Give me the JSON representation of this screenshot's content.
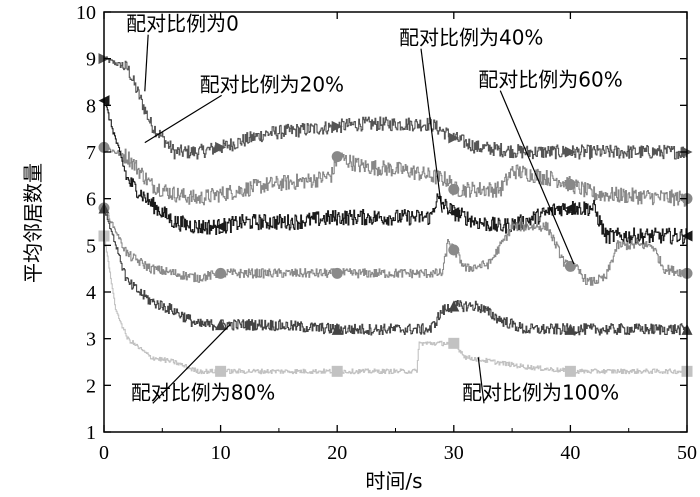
{
  "chart_data": {
    "type": "line",
    "xlabel": "时间/s",
    "ylabel": "平均邻居数量",
    "xlim": [
      0,
      50
    ],
    "ylim": [
      1,
      10
    ],
    "xticks": [
      0,
      10,
      20,
      30,
      40,
      50
    ],
    "yticks": [
      1,
      2,
      3,
      4,
      5,
      6,
      7,
      8,
      9,
      10
    ],
    "grid": false,
    "series": [
      {
        "name": "配对比例为0",
        "color": "#555555",
        "marker": "triangle-right",
        "marker_x": [
          0,
          10,
          20,
          30,
          40,
          50
        ],
        "x": [
          0,
          2,
          4,
          6,
          8,
          10,
          14,
          18,
          22,
          26,
          28,
          30,
          32,
          36,
          40,
          44,
          50
        ],
        "y": [
          9.0,
          8.8,
          7.6,
          7.0,
          7.0,
          7.1,
          7.4,
          7.5,
          7.6,
          7.6,
          7.6,
          7.3,
          7.1,
          7.0,
          7.0,
          7.0,
          7.0
        ],
        "noise": 0.15
      },
      {
        "name": "配对比例为20%",
        "color": "#888888",
        "marker": "circle",
        "marker_x": [
          0,
          20,
          30,
          40,
          50
        ],
        "x": [
          0,
          2,
          4,
          6,
          8,
          10,
          14,
          18,
          19.5,
          20,
          22,
          26,
          29.5,
          30,
          34,
          35,
          39,
          42,
          50
        ],
        "y": [
          7.1,
          6.9,
          6.3,
          6.1,
          6.0,
          6.1,
          6.3,
          6.4,
          6.5,
          6.9,
          6.7,
          6.6,
          6.4,
          6.2,
          6.2,
          6.6,
          6.4,
          6.1,
          6.0
        ],
        "noise": 0.17
      },
      {
        "name": "配对比例为40%",
        "color": "#1a1a1a",
        "marker": "triangle-left",
        "marker_x": [
          0,
          10,
          30,
          40,
          50
        ],
        "x": [
          0,
          2,
          4,
          6,
          8,
          10,
          12,
          16,
          20,
          24,
          28,
          28.5,
          30,
          32,
          34,
          36,
          39,
          42,
          43,
          50
        ],
        "y": [
          8.1,
          6.4,
          5.9,
          5.5,
          5.4,
          5.4,
          5.5,
          5.5,
          5.6,
          5.6,
          5.6,
          6.0,
          5.7,
          5.5,
          5.4,
          5.5,
          5.8,
          5.8,
          5.2,
          5.2
        ],
        "noise": 0.17
      },
      {
        "name": "配对比例为60%",
        "color": "#8a8a8a",
        "marker": "circle",
        "marker_x": [
          0,
          10,
          20,
          30,
          40,
          50
        ],
        "x": [
          0,
          2,
          4,
          6,
          8,
          10,
          16,
          22,
          29,
          29.5,
          31,
          33,
          35,
          38,
          39.5,
          40.5,
          41.5,
          43,
          44,
          47,
          48,
          50
        ],
        "y": [
          5.8,
          4.8,
          4.5,
          4.4,
          4.3,
          4.4,
          4.4,
          4.4,
          4.4,
          5.1,
          4.5,
          4.6,
          5.4,
          5.4,
          4.6,
          4.5,
          4.2,
          4.3,
          5.0,
          5.0,
          4.5,
          4.4
        ],
        "noise": 0.1
      },
      {
        "name": "配对比例为80%",
        "color": "#444444",
        "marker": "triangle-up",
        "marker_x": [
          0,
          10,
          20,
          30,
          40,
          50
        ],
        "x": [
          0,
          2,
          4,
          6,
          8,
          10,
          14,
          20,
          24,
          28,
          29,
          30,
          32,
          34,
          36,
          40,
          50
        ],
        "y": [
          5.8,
          4.2,
          3.8,
          3.6,
          3.3,
          3.3,
          3.3,
          3.2,
          3.2,
          3.2,
          3.6,
          3.7,
          3.7,
          3.4,
          3.2,
          3.2,
          3.2
        ],
        "noise": 0.12
      },
      {
        "name": "配对比例为100%",
        "color": "#c2c2c2",
        "marker": "square",
        "marker_x": [
          0,
          10,
          20,
          30,
          40,
          50
        ],
        "x": [
          0,
          1,
          2,
          4,
          6,
          8,
          10,
          16,
          22,
          26.8,
          27,
          30,
          31,
          36,
          40,
          50
        ],
        "y": [
          5.2,
          3.6,
          3.0,
          2.6,
          2.5,
          2.3,
          2.3,
          2.3,
          2.3,
          2.3,
          2.9,
          2.9,
          2.6,
          2.4,
          2.3,
          2.3
        ],
        "noise": 0.05
      }
    ],
    "annotations": [
      {
        "text": "配对比例为0",
        "series": 0,
        "text_x": 1.9,
        "text_y": 9.6,
        "target_x": 3.5,
        "target_y": 8.3
      },
      {
        "text": "配对比例为20%",
        "series": 1,
        "text_x": 8.2,
        "text_y": 8.3,
        "target_x": 3.5,
        "target_y": 7.2
      },
      {
        "text": "配对比例为40%",
        "series": 2,
        "text_x": 25.3,
        "text_y": 9.3,
        "target_x": 29.0,
        "target_y": 5.7
      },
      {
        "text": "配对比例为60%",
        "series": 3,
        "text_x": 32.1,
        "text_y": 8.4,
        "target_x": 40.3,
        "target_y": 4.6
      },
      {
        "text": "配对比例为80%",
        "series": 4,
        "text_x": 2.3,
        "text_y": 1.7,
        "target_x": 10.8,
        "target_y": 3.3
      },
      {
        "text": "配对比例为100%",
        "series": 5,
        "text_x": 30.7,
        "text_y": 1.7,
        "target_x": 32.1,
        "target_y": 2.6
      }
    ]
  }
}
